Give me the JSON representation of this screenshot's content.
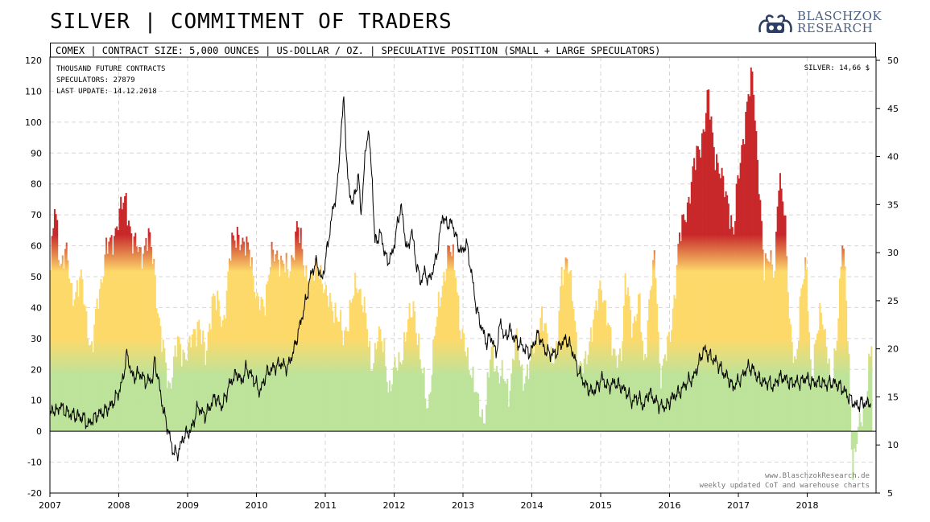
{
  "header": {
    "title": "SILVER | COMMITMENT OF TRADERS",
    "subtitle": "COMEX | CONTRACT SIZE: 5,000 OUNCES | US-DOLLAR / OZ. | SPECULATIVE POSITION (SMALL + LARGE SPECULATORS)",
    "logo_line1": "BLASCHZOK",
    "logo_line2": "RESEARCH"
  },
  "info": {
    "unit": "THOUSAND FUTURE CONTRACTS",
    "speculators": "SPECULATORS:  27879",
    "last_update": "LAST UPDATE: 14.12.2018",
    "silver_price": "SILVER: 14,66 $"
  },
  "watermark": {
    "line1": "www.BlaschzokResearch.de",
    "line2": "weekly updated CoT and warehouse charts"
  },
  "colors": {
    "red": "#c8282a",
    "yellow": "#fdd96a",
    "green": "#bde39a",
    "price_line": "#000000"
  },
  "chart_data": {
    "type": "bar",
    "xlim": [
      2007.0,
      2019.0
    ],
    "ylim": [
      -20,
      120
    ],
    "y2lim": [
      5,
      50
    ],
    "grid": true,
    "x_ticks": [
      "2007",
      "2008",
      "2009",
      "2010",
      "2011",
      "2012",
      "2013",
      "2014",
      "2015",
      "2016",
      "2017",
      "2018"
    ],
    "y_ticks": [
      -20,
      -10,
      0,
      10,
      20,
      30,
      40,
      50,
      60,
      70,
      80,
      90,
      100,
      110,
      120
    ],
    "y2_ticks": [
      5,
      10,
      15,
      20,
      25,
      30,
      35,
      40,
      45,
      50
    ],
    "series": [
      {
        "axis": "left",
        "keyframes": [
          [
            2007.0,
            52
          ],
          [
            2007.06,
            72
          ],
          [
            2007.14,
            55
          ],
          [
            2007.22,
            58
          ],
          [
            2007.3,
            45
          ],
          [
            2007.45,
            48
          ],
          [
            2007.6,
            25
          ],
          [
            2007.7,
            45
          ],
          [
            2007.8,
            58
          ],
          [
            2007.88,
            60
          ],
          [
            2007.96,
            68
          ],
          [
            2008.1,
            75
          ],
          [
            2008.2,
            60
          ],
          [
            2008.3,
            58
          ],
          [
            2008.42,
            62
          ],
          [
            2008.5,
            55
          ],
          [
            2008.6,
            30
          ],
          [
            2008.72,
            15
          ],
          [
            2008.85,
            28
          ],
          [
            2009.0,
            25
          ],
          [
            2009.15,
            37
          ],
          [
            2009.25,
            22
          ],
          [
            2009.35,
            45
          ],
          [
            2009.5,
            35
          ],
          [
            2009.62,
            58
          ],
          [
            2009.72,
            66
          ],
          [
            2009.8,
            58
          ],
          [
            2009.9,
            60
          ],
          [
            2010.0,
            40
          ],
          [
            2010.1,
            42
          ],
          [
            2010.2,
            55
          ],
          [
            2010.3,
            58
          ],
          [
            2010.45,
            50
          ],
          [
            2010.58,
            66
          ],
          [
            2010.68,
            55
          ],
          [
            2010.78,
            47
          ],
          [
            2010.9,
            55
          ],
          [
            2011.0,
            42
          ],
          [
            2011.1,
            42
          ],
          [
            2011.25,
            30
          ],
          [
            2011.35,
            40
          ],
          [
            2011.47,
            48
          ],
          [
            2011.55,
            42
          ],
          [
            2011.65,
            20
          ],
          [
            2011.75,
            32
          ],
          [
            2011.85,
            25
          ],
          [
            2011.92,
            14
          ],
          [
            2012.05,
            22
          ],
          [
            2012.15,
            30
          ],
          [
            2012.28,
            42
          ],
          [
            2012.38,
            20
          ],
          [
            2012.48,
            8
          ],
          [
            2012.58,
            30
          ],
          [
            2012.68,
            48
          ],
          [
            2012.8,
            58
          ],
          [
            2012.88,
            55
          ],
          [
            2012.96,
            30
          ],
          [
            2013.1,
            22
          ],
          [
            2013.2,
            8
          ],
          [
            2013.3,
            5
          ],
          [
            2013.4,
            25
          ],
          [
            2013.55,
            18
          ],
          [
            2013.65,
            12
          ],
          [
            2013.75,
            30
          ],
          [
            2013.85,
            18
          ],
          [
            2013.95,
            20
          ],
          [
            2014.05,
            30
          ],
          [
            2014.12,
            38
          ],
          [
            2014.22,
            28
          ],
          [
            2014.35,
            24
          ],
          [
            2014.42,
            50
          ],
          [
            2014.5,
            58
          ],
          [
            2014.58,
            42
          ],
          [
            2014.66,
            24
          ],
          [
            2014.78,
            20
          ],
          [
            2014.88,
            38
          ],
          [
            2015.0,
            45
          ],
          [
            2015.08,
            40
          ],
          [
            2015.18,
            22
          ],
          [
            2015.3,
            28
          ],
          [
            2015.35,
            48
          ],
          [
            2015.45,
            35
          ],
          [
            2015.55,
            42
          ],
          [
            2015.62,
            20
          ],
          [
            2015.7,
            45
          ],
          [
            2015.78,
            55
          ],
          [
            2015.85,
            20
          ],
          [
            2015.95,
            25
          ],
          [
            2016.0,
            30
          ],
          [
            2016.06,
            45
          ],
          [
            2016.12,
            60
          ],
          [
            2016.2,
            68
          ],
          [
            2016.3,
            80
          ],
          [
            2016.4,
            90
          ],
          [
            2016.5,
            100
          ],
          [
            2016.55,
            108
          ],
          [
            2016.62,
            95
          ],
          [
            2016.75,
            80
          ],
          [
            2016.85,
            75
          ],
          [
            2016.92,
            62
          ],
          [
            2016.98,
            80
          ],
          [
            2017.05,
            95
          ],
          [
            2017.12,
            105
          ],
          [
            2017.2,
            116
          ],
          [
            2017.28,
            85
          ],
          [
            2017.36,
            50
          ],
          [
            2017.44,
            60
          ],
          [
            2017.52,
            50
          ],
          [
            2017.58,
            82
          ],
          [
            2017.66,
            75
          ],
          [
            2017.74,
            30
          ],
          [
            2017.82,
            22
          ],
          [
            2017.9,
            45
          ],
          [
            2017.98,
            52
          ],
          [
            2018.05,
            18
          ],
          [
            2018.12,
            28
          ],
          [
            2018.2,
            40
          ],
          [
            2018.28,
            28
          ],
          [
            2018.34,
            10
          ],
          [
            2018.42,
            32
          ],
          [
            2018.5,
            62
          ],
          [
            2018.55,
            45
          ],
          [
            2018.6,
            20
          ],
          [
            2018.65,
            -12
          ],
          [
            2018.7,
            -5
          ],
          [
            2018.76,
            2
          ],
          [
            2018.82,
            8
          ],
          [
            2018.88,
            20
          ],
          [
            2018.93,
            28
          ]
        ]
      },
      {
        "axis": "right",
        "keyframes": [
          [
            2007.0,
            13.0
          ],
          [
            2007.05,
            13.8
          ],
          [
            2007.1,
            13.4
          ],
          [
            2007.15,
            14.2
          ],
          [
            2007.2,
            13.6
          ],
          [
            2007.3,
            13.2
          ],
          [
            2007.4,
            13.0
          ],
          [
            2007.5,
            12.8
          ],
          [
            2007.55,
            12.0
          ],
          [
            2007.6,
            12.5
          ],
          [
            2007.7,
            13.2
          ],
          [
            2007.8,
            13.5
          ],
          [
            2007.9,
            14.2
          ],
          [
            2008.0,
            15.5
          ],
          [
            2008.05,
            16.5
          ],
          [
            2008.12,
            19.5
          ],
          [
            2008.2,
            17.0
          ],
          [
            2008.3,
            17.5
          ],
          [
            2008.4,
            16.5
          ],
          [
            2008.5,
            17.0
          ],
          [
            2008.52,
            19.0
          ],
          [
            2008.58,
            16.5
          ],
          [
            2008.65,
            13.5
          ],
          [
            2008.72,
            11.5
          ],
          [
            2008.78,
            9.5
          ],
          [
            2008.85,
            9.0
          ],
          [
            2008.9,
            10.0
          ],
          [
            2008.95,
            11.0
          ],
          [
            2009.05,
            11.5
          ],
          [
            2009.15,
            14.0
          ],
          [
            2009.25,
            13.0
          ],
          [
            2009.4,
            15.0
          ],
          [
            2009.5,
            14.0
          ],
          [
            2009.62,
            16.5
          ],
          [
            2009.72,
            17.5
          ],
          [
            2009.78,
            16.5
          ],
          [
            2009.85,
            18.0
          ],
          [
            2009.95,
            17.0
          ],
          [
            2010.05,
            15.5
          ],
          [
            2010.15,
            17.5
          ],
          [
            2010.25,
            18.0
          ],
          [
            2010.35,
            18.5
          ],
          [
            2010.45,
            18.0
          ],
          [
            2010.55,
            20.0
          ],
          [
            2010.65,
            23.0
          ],
          [
            2010.72,
            25.0
          ],
          [
            2010.8,
            28.0
          ],
          [
            2010.88,
            29.0
          ],
          [
            2010.95,
            27.0
          ],
          [
            2011.02,
            30.0
          ],
          [
            2011.1,
            34.0
          ],
          [
            2011.18,
            37.0
          ],
          [
            2011.22,
            42.0
          ],
          [
            2011.27,
            46.0
          ],
          [
            2011.33,
            37.0
          ],
          [
            2011.4,
            35.0
          ],
          [
            2011.48,
            38.0
          ],
          [
            2011.52,
            34.0
          ],
          [
            2011.58,
            40.0
          ],
          [
            2011.62,
            43.0
          ],
          [
            2011.68,
            38.0
          ],
          [
            2011.72,
            31.0
          ],
          [
            2011.8,
            32.0
          ],
          [
            2011.9,
            29.0
          ],
          [
            2011.98,
            30.0
          ],
          [
            2012.05,
            33.0
          ],
          [
            2012.1,
            35.0
          ],
          [
            2012.15,
            32.0
          ],
          [
            2012.2,
            30.0
          ],
          [
            2012.25,
            32.5
          ],
          [
            2012.32,
            29.0
          ],
          [
            2012.38,
            27.0
          ],
          [
            2012.45,
            28.0
          ],
          [
            2012.5,
            27.0
          ],
          [
            2012.58,
            28.5
          ],
          [
            2012.65,
            31.0
          ],
          [
            2012.7,
            34.0
          ],
          [
            2012.75,
            33.0
          ],
          [
            2012.85,
            33.0
          ],
          [
            2012.92,
            31.0
          ],
          [
            2012.98,
            30.0
          ],
          [
            2013.05,
            31.0
          ],
          [
            2013.12,
            28.0
          ],
          [
            2013.2,
            24.0
          ],
          [
            2013.28,
            22.0
          ],
          [
            2013.35,
            20.5
          ],
          [
            2013.4,
            21.5
          ],
          [
            2013.48,
            19.5
          ],
          [
            2013.55,
            23.0
          ],
          [
            2013.6,
            21.0
          ],
          [
            2013.68,
            22.0
          ],
          [
            2013.75,
            21.0
          ],
          [
            2013.82,
            20.5
          ],
          [
            2013.9,
            20.0
          ],
          [
            2013.98,
            19.5
          ],
          [
            2014.05,
            21.0
          ],
          [
            2014.1,
            21.5
          ],
          [
            2014.18,
            20.0
          ],
          [
            2014.25,
            19.5
          ],
          [
            2014.35,
            19.5
          ],
          [
            2014.42,
            20.5
          ],
          [
            2014.5,
            21.0
          ],
          [
            2014.58,
            20.0
          ],
          [
            2014.66,
            18.0
          ],
          [
            2014.72,
            17.0
          ],
          [
            2014.8,
            16.0
          ],
          [
            2014.88,
            15.5
          ],
          [
            2014.95,
            16.0
          ],
          [
            2015.02,
            17.0
          ],
          [
            2015.1,
            16.0
          ],
          [
            2015.2,
            16.5
          ],
          [
            2015.3,
            16.0
          ],
          [
            2015.38,
            15.5
          ],
          [
            2015.45,
            14.5
          ],
          [
            2015.55,
            15.0
          ],
          [
            2015.62,
            14.0
          ],
          [
            2015.7,
            15.5
          ],
          [
            2015.8,
            14.5
          ],
          [
            2015.88,
            14.0
          ],
          [
            2015.95,
            14.0
          ],
          [
            2016.05,
            15.0
          ],
          [
            2016.15,
            15.5
          ],
          [
            2016.25,
            16.5
          ],
          [
            2016.35,
            17.0
          ],
          [
            2016.45,
            19.0
          ],
          [
            2016.5,
            20.0
          ],
          [
            2016.55,
            19.5
          ],
          [
            2016.62,
            19.0
          ],
          [
            2016.7,
            18.5
          ],
          [
            2016.78,
            17.5
          ],
          [
            2016.85,
            17.0
          ],
          [
            2016.92,
            16.0
          ],
          [
            2016.98,
            16.5
          ],
          [
            2017.05,
            17.0
          ],
          [
            2017.12,
            18.0
          ],
          [
            2017.2,
            18.0
          ],
          [
            2017.28,
            17.0
          ],
          [
            2017.36,
            16.5
          ],
          [
            2017.44,
            16.5
          ],
          [
            2017.52,
            16.0
          ],
          [
            2017.58,
            17.0
          ],
          [
            2017.66,
            17.0
          ],
          [
            2017.74,
            16.5
          ],
          [
            2017.82,
            16.5
          ],
          [
            2017.9,
            16.5
          ],
          [
            2017.98,
            17.0
          ],
          [
            2018.05,
            16.5
          ],
          [
            2018.12,
            16.5
          ],
          [
            2018.2,
            16.5
          ],
          [
            2018.28,
            16.3
          ],
          [
            2018.36,
            16.5
          ],
          [
            2018.44,
            16.3
          ],
          [
            2018.52,
            15.8
          ],
          [
            2018.6,
            15.0
          ],
          [
            2018.66,
            14.5
          ],
          [
            2018.72,
            14.0
          ],
          [
            2018.8,
            14.5
          ],
          [
            2018.86,
            14.2
          ],
          [
            2018.93,
            14.66
          ]
        ]
      }
    ]
  }
}
